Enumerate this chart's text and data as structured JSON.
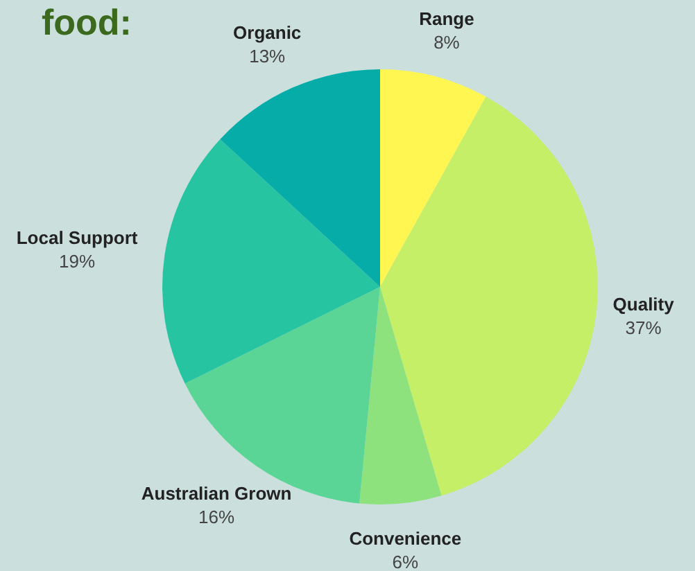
{
  "chart_data": {
    "type": "pie",
    "title": "food:",
    "categories": [
      "Range",
      "Quality",
      "Convenience",
      "Australian Grown",
      "Local Support",
      "Organic"
    ],
    "values": [
      8,
      37,
      6,
      16,
      19,
      13
    ],
    "colors": [
      "#fff652",
      "#c5ef66",
      "#8de27e",
      "#5bd596",
      "#27c4a2",
      "#06aca8"
    ],
    "value_labels": [
      "8%",
      "37%",
      "6%",
      "16%",
      "19%",
      "13%"
    ],
    "legend": false
  }
}
